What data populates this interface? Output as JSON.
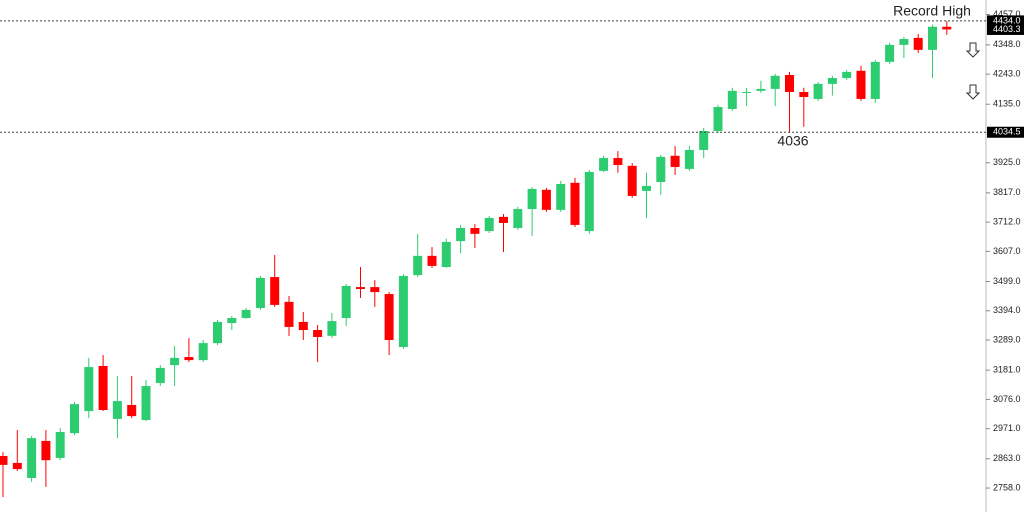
{
  "chart_data": {
    "type": "candlestick",
    "up_color": "#2ecc71",
    "down_color": "#ff0000",
    "ylim": [
      2672,
      4509
    ],
    "yticks": [
      {
        "value": 2758,
        "label": "2758.0"
      },
      {
        "value": 2863,
        "label": "2863.0"
      },
      {
        "value": 2971,
        "label": "2971.0"
      },
      {
        "value": 3076,
        "label": "3076.0"
      },
      {
        "value": 3181,
        "label": "3181.0"
      },
      {
        "value": 3289,
        "label": "3289.0"
      },
      {
        "value": 3394,
        "label": "3394.0"
      },
      {
        "value": 3499,
        "label": "3499.0"
      },
      {
        "value": 3607,
        "label": "3607.0"
      },
      {
        "value": 3712,
        "label": "3712.0"
      },
      {
        "value": 3817,
        "label": "3817.0"
      },
      {
        "value": 3925,
        "label": "3925.0"
      },
      {
        "value": 4135,
        "label": "4135.0"
      },
      {
        "value": 4243,
        "label": "4243.0"
      },
      {
        "value": 4348,
        "label": "4348.0"
      },
      {
        "value": 4457,
        "label": "4457.0"
      }
    ],
    "reference_lines": [
      {
        "value": 4434,
        "label": "4434.0"
      },
      {
        "value": 4034.5,
        "label": "4034.5"
      }
    ],
    "last_price": {
      "value": 4403.3,
      "label": "4403.3"
    },
    "annotations": [
      {
        "text": "Record High"
      },
      {
        "value": 4036,
        "label": "4036"
      }
    ],
    "open": [
      2873,
      2848,
      2794,
      2927,
      2866,
      2955,
      3034,
      3196,
      3006,
      3056,
      3002,
      3135,
      3199,
      3228,
      3217,
      3278,
      3350,
      3368,
      3404,
      3515,
      3426,
      3354,
      3325,
      3304,
      3368,
      3479,
      3479,
      3454,
      3264,
      3522,
      3591,
      3551,
      3644,
      3691,
      3680,
      3731,
      3691,
      3759,
      3828,
      3756,
      3853,
      3680,
      3896,
      3942,
      3914,
      3824,
      3856,
      3950,
      3903,
      3971,
      4039,
      4118,
      4176,
      4183,
      4190,
      4240,
      4179,
      4154,
      4208,
      4229,
      4255,
      4154,
      4287,
      4348,
      4373,
      4330,
      4413
    ],
    "high": [
      2887,
      2966,
      2945,
      2966,
      2973,
      3067,
      3225,
      3235,
      3160,
      3160,
      3146,
      3199,
      3268,
      3296,
      3289,
      3361,
      3375,
      3404,
      3519,
      3594,
      3447,
      3390,
      3343,
      3386,
      3490,
      3551,
      3504,
      3461,
      3526,
      3670,
      3623,
      3652,
      3702,
      3705,
      3734,
      3741,
      3767,
      3838,
      3835,
      3860,
      3871,
      3899,
      3950,
      3967,
      3924,
      3889,
      3953,
      3985,
      3985,
      4050,
      4133,
      4194,
      4194,
      4219,
      4244,
      4251,
      4194,
      4215,
      4237,
      4258,
      4273,
      4294,
      4355,
      4377,
      4387,
      4420,
      4434
    ],
    "low": [
      2726,
      2819,
      2780,
      2762,
      2858,
      2948,
      3009,
      3034,
      2937,
      3009,
      2998,
      3124,
      3124,
      3210,
      3210,
      3271,
      3325,
      3365,
      3397,
      3408,
      3304,
      3289,
      3210,
      3296,
      3339,
      3440,
      3408,
      3235,
      3257,
      3515,
      3548,
      3548,
      3601,
      3619,
      3673,
      3605,
      3684,
      3662,
      3749,
      3749,
      3695,
      3670,
      3892,
      3889,
      3799,
      3727,
      3810,
      3881,
      3896,
      3942,
      4032,
      4111,
      4129,
      4176,
      4129,
      4036,
      4054,
      4147,
      4166,
      4222,
      4147,
      4140,
      4280,
      4301,
      4319,
      4229,
      4384
    ],
    "close": [
      2841,
      2826,
      2937,
      2858,
      2959,
      3059,
      3192,
      3038,
      3070,
      3016,
      3124,
      3189,
      3225,
      3217,
      3278,
      3354,
      3368,
      3397,
      3512,
      3415,
      3336,
      3325,
      3300,
      3357,
      3483,
      3472,
      3461,
      3289,
      3519,
      3591,
      3555,
      3641,
      3691,
      3670,
      3727,
      3709,
      3759,
      3831,
      3756,
      3849,
      3702,
      3892,
      3942,
      3917,
      3806,
      3842,
      3946,
      3910,
      3971,
      4039,
      4125,
      4183,
      4179,
      4190,
      4237,
      4179,
      4161,
      4208,
      4229,
      4251,
      4154,
      4287,
      4348,
      4369,
      4330,
      4413,
      4403.3
    ]
  }
}
